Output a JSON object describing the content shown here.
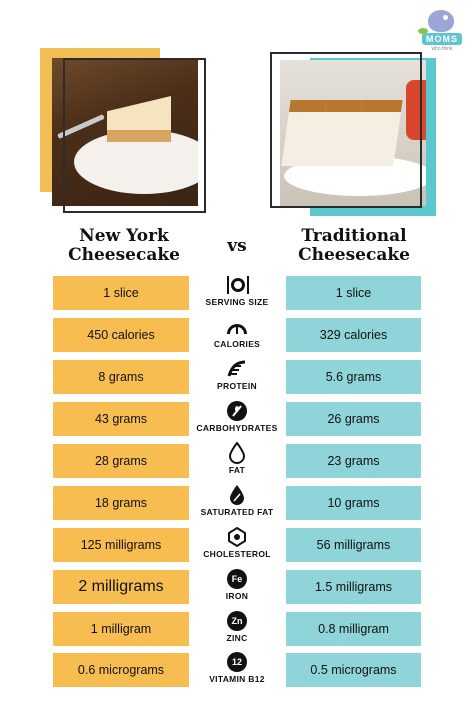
{
  "logo": {
    "text": "MOMS",
    "sub": "who think"
  },
  "titles": {
    "left_line1": "New York",
    "left_line2": "Cheesecake",
    "vs": "vs",
    "right_line1": "Traditional",
    "right_line2": "Cheesecake"
  },
  "rows": [
    {
      "label": "SERVING SIZE",
      "icon": "utensils-plate-icon",
      "left": "1 slice",
      "right": "1 slice"
    },
    {
      "label": "CALORIES",
      "icon": "gauge-icon",
      "left": "450 calories",
      "right": "329 calories"
    },
    {
      "label": "PROTEIN",
      "icon": "protein-icon",
      "left": "8 grams",
      "right": "5.6 grams"
    },
    {
      "label": "CARBOHYDRATES",
      "icon": "wheat-icon",
      "left": "43 grams",
      "right": "26 grams"
    },
    {
      "label": "FAT",
      "icon": "droplet-icon",
      "left": "28 grams",
      "right": "23 grams"
    },
    {
      "label": "SATURATED FAT",
      "icon": "droplet-percent-icon",
      "left": "18 grams",
      "right": "10 grams"
    },
    {
      "label": "CHOLESTEROL",
      "icon": "molecule-icon",
      "left": "125 milligrams",
      "right": "56 milligrams"
    },
    {
      "label": "IRON",
      "icon": "iron-icon",
      "symbol": "Fe",
      "left": "2 milligrams",
      "right": "1.5 milligrams"
    },
    {
      "label": "ZINC",
      "icon": "zinc-icon",
      "symbol": "Zn",
      "left": "1 milligram",
      "right": "0.8 milligram"
    },
    {
      "label": "VITAMIN B12",
      "icon": "vitamin-b12-icon",
      "symbol": "12",
      "left": "0.6 micrograms",
      "right": "0.5 micrograms"
    }
  ],
  "colors": {
    "left_cell": "#f7bd50",
    "right_cell": "#8fd4d8",
    "accent_yellow": "#f1bd55",
    "accent_teal": "#5bc8cf"
  }
}
